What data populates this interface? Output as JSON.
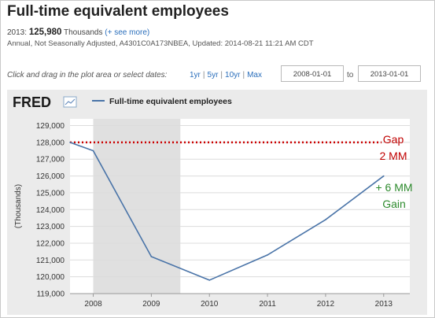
{
  "header": {
    "title": "Full-time equivalent employees",
    "latest_label": "2013:",
    "latest_value": "125,980",
    "latest_unit": "Thousands",
    "see_more": "(+ see more)",
    "meta": "Annual, Not Seasonally Adjusted, A4301C0A173NBEA, Updated: 2014-08-21 11:21 AM CDT"
  },
  "controls": {
    "prompt": "Click and drag in the plot area or select dates:",
    "range_links": [
      "1yr",
      "5yr",
      "10yr",
      "Max"
    ],
    "start_date": "2008-01-01",
    "to_label": "to",
    "end_date": "2013-01-01"
  },
  "logo": {
    "text": "FRED"
  },
  "chart_data": {
    "type": "line",
    "legend": "Full-time equivalent employees",
    "ylabel": "(Thousands)",
    "xlabel": "",
    "x": [
      2007.6,
      2008,
      2009,
      2010,
      2011,
      2012,
      2013
    ],
    "y": [
      128000,
      127500,
      121200,
      119800,
      121300,
      123400,
      126000
    ],
    "xticks": [
      "2008",
      "2009",
      "2010",
      "2011",
      "2012",
      "2013"
    ],
    "xlim": [
      2007.6,
      2013.45
    ],
    "yticks": [
      "119,000",
      "120,000",
      "121,000",
      "122,000",
      "123,000",
      "124,000",
      "125,000",
      "126,000",
      "127,000",
      "128,000",
      "129,000"
    ],
    "ylim": [
      119000,
      129400
    ],
    "recession_shading": [
      2008.0,
      2009.5
    ],
    "reference_line": {
      "y": 128000,
      "style": "dotted",
      "color": "#cc0000"
    },
    "line_color": "#4a74a8",
    "annotations": [
      {
        "lines": [
          "Gap",
          "2 MM"
        ],
        "color": "#c00000"
      },
      {
        "lines": [
          "+ 6 MM",
          "Gain"
        ],
        "color": "#2e8b2e"
      }
    ]
  }
}
